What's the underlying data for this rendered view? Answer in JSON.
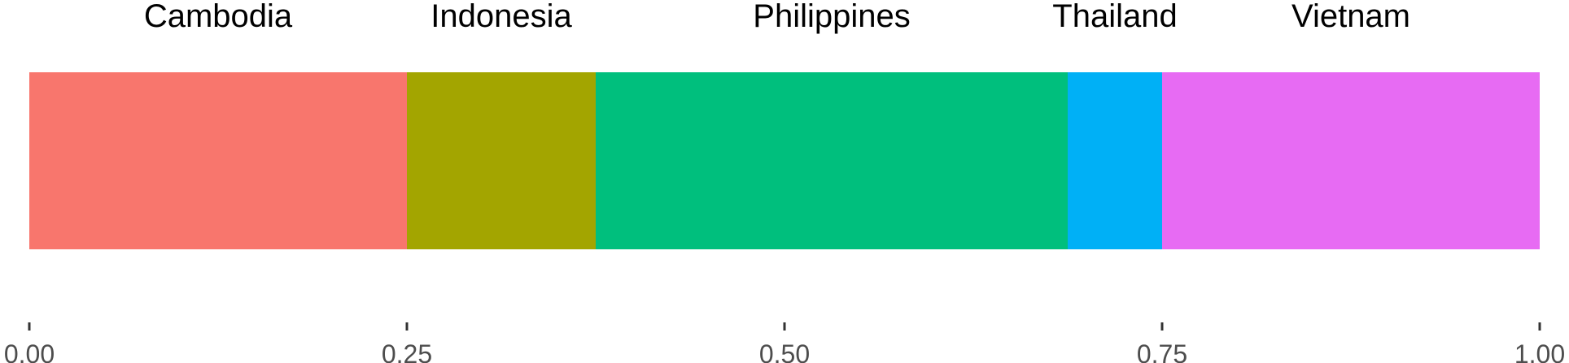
{
  "chart_data": {
    "type": "bar",
    "orientation": "horizontal-stacked",
    "categories": [
      "Cambodia",
      "Indonesia",
      "Philippines",
      "Thailand",
      "Vietnam"
    ],
    "values": [
      0.25,
      0.125,
      0.3125,
      0.0625,
      0.25
    ],
    "colors": [
      "#F8766D",
      "#A3A500",
      "#00BF7D",
      "#00B0F6",
      "#E76BF3"
    ],
    "xlim": [
      0,
      1
    ],
    "x_ticks": [
      0,
      0.25,
      0.5,
      0.75,
      1
    ],
    "x_tick_labels": [
      "0.00",
      "0.25",
      "0.50",
      "0.75",
      "1.00"
    ],
    "title": "",
    "xlabel": "",
    "ylabel": "",
    "grid": false,
    "legend": "none"
  }
}
